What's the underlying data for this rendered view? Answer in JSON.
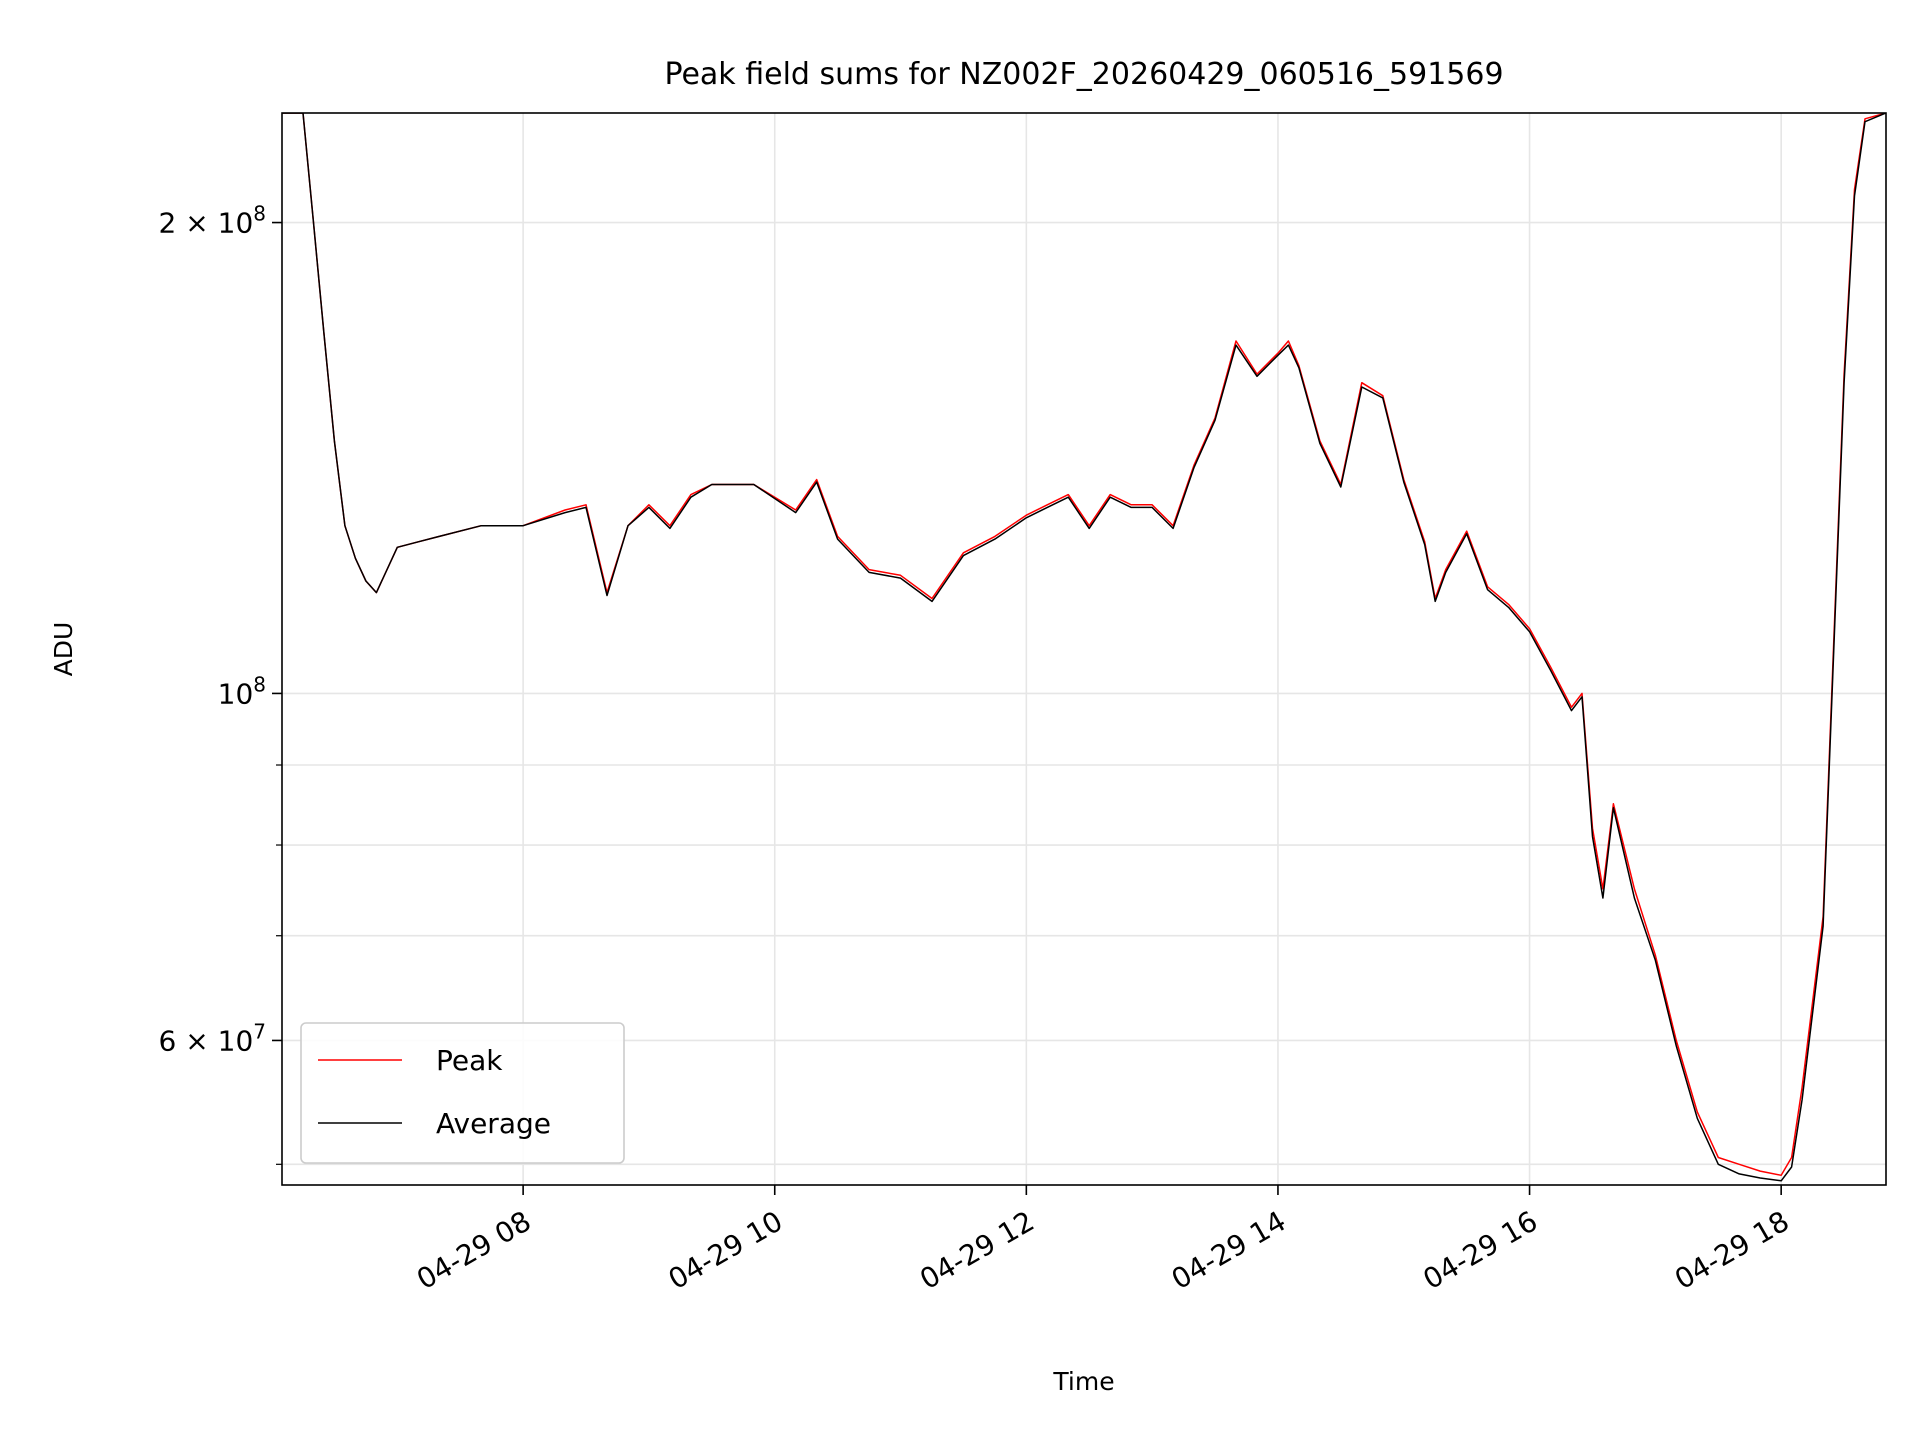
{
  "chart_data": {
    "type": "line",
    "title": "Peak field sums for NZ002F_20260429_060516_591569",
    "xlabel": "Time",
    "ylabel": "ADU",
    "yscale": "log",
    "grid": true,
    "legend_position": "lower-left",
    "x_range": [
      "2026-04-29 06:05",
      "2026-04-29 18:50"
    ],
    "ylim": [
      48500000,
      235000000
    ],
    "x_ticks": [
      {
        "value": "2026-04-29 08:00",
        "label": "04-29 08"
      },
      {
        "value": "2026-04-29 10:00",
        "label": "04-29 10"
      },
      {
        "value": "2026-04-29 12:00",
        "label": "04-29 12"
      },
      {
        "value": "2026-04-29 14:00",
        "label": "04-29 14"
      },
      {
        "value": "2026-04-29 16:00",
        "label": "04-29 16"
      },
      {
        "value": "2026-04-29 18:00",
        "label": "04-29 18"
      }
    ],
    "y_major_ticks": [
      {
        "value": 200000000,
        "mantissa": "2",
        "exponent": "8"
      },
      {
        "value": 100000000,
        "mantissa": "",
        "exponent": "8"
      },
      {
        "value": 60000000,
        "mantissa": "6",
        "exponent": "7"
      }
    ],
    "y_minor_ticks": [
      50000000,
      70000000,
      80000000,
      90000000
    ],
    "series": [
      {
        "name": "Peak",
        "color": "#ff0000",
        "x": [
          "2026-04-29 06:05",
          "2026-04-29 06:15",
          "2026-04-29 06:20",
          "2026-04-29 06:25",
          "2026-04-29 06:30",
          "2026-04-29 06:35",
          "2026-04-29 06:40",
          "2026-04-29 06:45",
          "2026-04-29 06:50",
          "2026-04-29 07:00",
          "2026-04-29 07:10",
          "2026-04-29 07:20",
          "2026-04-29 07:40",
          "2026-04-29 08:00",
          "2026-04-29 08:20",
          "2026-04-29 08:30",
          "2026-04-29 08:40",
          "2026-04-29 08:50",
          "2026-04-29 09:00",
          "2026-04-29 09:10",
          "2026-04-29 09:20",
          "2026-04-29 09:30",
          "2026-04-29 09:50",
          "2026-04-29 10:10",
          "2026-04-29 10:20",
          "2026-04-29 10:30",
          "2026-04-29 10:45",
          "2026-04-29 11:00",
          "2026-04-29 11:15",
          "2026-04-29 11:30",
          "2026-04-29 11:45",
          "2026-04-29 12:00",
          "2026-04-29 12:10",
          "2026-04-29 12:20",
          "2026-04-29 12:30",
          "2026-04-29 12:40",
          "2026-04-29 12:50",
          "2026-04-29 13:00",
          "2026-04-29 13:10",
          "2026-04-29 13:20",
          "2026-04-29 13:30",
          "2026-04-29 13:40",
          "2026-04-29 13:50",
          "2026-04-29 14:00",
          "2026-04-29 14:05",
          "2026-04-29 14:10",
          "2026-04-29 14:20",
          "2026-04-29 14:30",
          "2026-04-29 14:40",
          "2026-04-29 14:50",
          "2026-04-29 15:00",
          "2026-04-29 15:10",
          "2026-04-29 15:15",
          "2026-04-29 15:20",
          "2026-04-29 15:30",
          "2026-04-29 15:40",
          "2026-04-29 15:50",
          "2026-04-29 16:00",
          "2026-04-29 16:10",
          "2026-04-29 16:20",
          "2026-04-29 16:25",
          "2026-04-29 16:30",
          "2026-04-29 16:35",
          "2026-04-29 16:40",
          "2026-04-29 16:50",
          "2026-04-29 17:00",
          "2026-04-29 17:10",
          "2026-04-29 17:20",
          "2026-04-29 17:30",
          "2026-04-29 17:40",
          "2026-04-29 17:50",
          "2026-04-29 18:00",
          "2026-04-29 18:05",
          "2026-04-29 18:10",
          "2026-04-29 18:20",
          "2026-04-29 18:30",
          "2026-04-29 18:35",
          "2026-04-29 18:40",
          "2026-04-29 18:50"
        ],
        "y": [
          235000000,
          235000000,
          200000000,
          170000000,
          145000000,
          128000000,
          122000000,
          118000000,
          116000000,
          124000000,
          125000000,
          126000000,
          128000000,
          128000000,
          131000000,
          132000000,
          116000000,
          128000000,
          132000000,
          128000000,
          134000000,
          136000000,
          136000000,
          131000000,
          137000000,
          126000000,
          120000000,
          119000000,
          115000000,
          123000000,
          126000000,
          130000000,
          132000000,
          134000000,
          128000000,
          134000000,
          132000000,
          132000000,
          128000000,
          140000000,
          150000000,
          168000000,
          160000000,
          165000000,
          168000000,
          162000000,
          145000000,
          136000000,
          158000000,
          155000000,
          137000000,
          125000000,
          115000000,
          120000000,
          127000000,
          117000000,
          114000000,
          110000000,
          104000000,
          98000000,
          100000000,
          82000000,
          75000000,
          85000000,
          75000000,
          68000000,
          60000000,
          54000000,
          50500000,
          50000000,
          49500000,
          49200000,
          50500000,
          56000000,
          72000000,
          160000000,
          210000000,
          233000000,
          235000000
        ]
      },
      {
        "name": "Average",
        "color": "#000000",
        "x": [
          "2026-04-29 06:05",
          "2026-04-29 06:15",
          "2026-04-29 06:20",
          "2026-04-29 06:25",
          "2026-04-29 06:30",
          "2026-04-29 06:35",
          "2026-04-29 06:40",
          "2026-04-29 06:45",
          "2026-04-29 06:50",
          "2026-04-29 07:00",
          "2026-04-29 07:10",
          "2026-04-29 07:20",
          "2026-04-29 07:40",
          "2026-04-29 08:00",
          "2026-04-29 08:20",
          "2026-04-29 08:30",
          "2026-04-29 08:40",
          "2026-04-29 08:50",
          "2026-04-29 09:00",
          "2026-04-29 09:10",
          "2026-04-29 09:20",
          "2026-04-29 09:30",
          "2026-04-29 09:50",
          "2026-04-29 10:10",
          "2026-04-29 10:20",
          "2026-04-29 10:30",
          "2026-04-29 10:45",
          "2026-04-29 11:00",
          "2026-04-29 11:15",
          "2026-04-29 11:30",
          "2026-04-29 11:45",
          "2026-04-29 12:00",
          "2026-04-29 12:10",
          "2026-04-29 12:20",
          "2026-04-29 12:30",
          "2026-04-29 12:40",
          "2026-04-29 12:50",
          "2026-04-29 13:00",
          "2026-04-29 13:10",
          "2026-04-29 13:20",
          "2026-04-29 13:30",
          "2026-04-29 13:40",
          "2026-04-29 13:50",
          "2026-04-29 14:00",
          "2026-04-29 14:05",
          "2026-04-29 14:10",
          "2026-04-29 14:20",
          "2026-04-29 14:30",
          "2026-04-29 14:40",
          "2026-04-29 14:50",
          "2026-04-29 15:00",
          "2026-04-29 15:10",
          "2026-04-29 15:15",
          "2026-04-29 15:20",
          "2026-04-29 15:30",
          "2026-04-29 15:40",
          "2026-04-29 15:50",
          "2026-04-29 16:00",
          "2026-04-29 16:10",
          "2026-04-29 16:20",
          "2026-04-29 16:25",
          "2026-04-29 16:30",
          "2026-04-29 16:35",
          "2026-04-29 16:40",
          "2026-04-29 16:50",
          "2026-04-29 17:00",
          "2026-04-29 17:10",
          "2026-04-29 17:20",
          "2026-04-29 17:30",
          "2026-04-29 17:40",
          "2026-04-29 17:50",
          "2026-04-29 18:00",
          "2026-04-29 18:05",
          "2026-04-29 18:10",
          "2026-04-29 18:20",
          "2026-04-29 18:30",
          "2026-04-29 18:35",
          "2026-04-29 18:40",
          "2026-04-29 18:50"
        ],
        "y": [
          235000000,
          235000000,
          200000000,
          170000000,
          145000000,
          128000000,
          122000000,
          118000000,
          116000000,
          124000000,
          125000000,
          126000000,
          128000000,
          128000000,
          130500000,
          131500000,
          115500000,
          128000000,
          131500000,
          127500000,
          133500000,
          136000000,
          136000000,
          130500000,
          136500000,
          125500000,
          119500000,
          118500000,
          114500000,
          122500000,
          125500000,
          129500000,
          131500000,
          133500000,
          127500000,
          133500000,
          131500000,
          131500000,
          127500000,
          139500000,
          149500000,
          167000000,
          159500000,
          164500000,
          167000000,
          161500000,
          144500000,
          135500000,
          157000000,
          154500000,
          136500000,
          124500000,
          114500000,
          119500000,
          126500000,
          116500000,
          113500000,
          109500000,
          103500000,
          97500000,
          99500000,
          81000000,
          74000000,
          84500000,
          74000000,
          67500000,
          59500000,
          53500000,
          50000000,
          49300000,
          49000000,
          48800000,
          49800000,
          55000000,
          71000000,
          158000000,
          208000000,
          232000000,
          235000000
        ]
      }
    ]
  }
}
